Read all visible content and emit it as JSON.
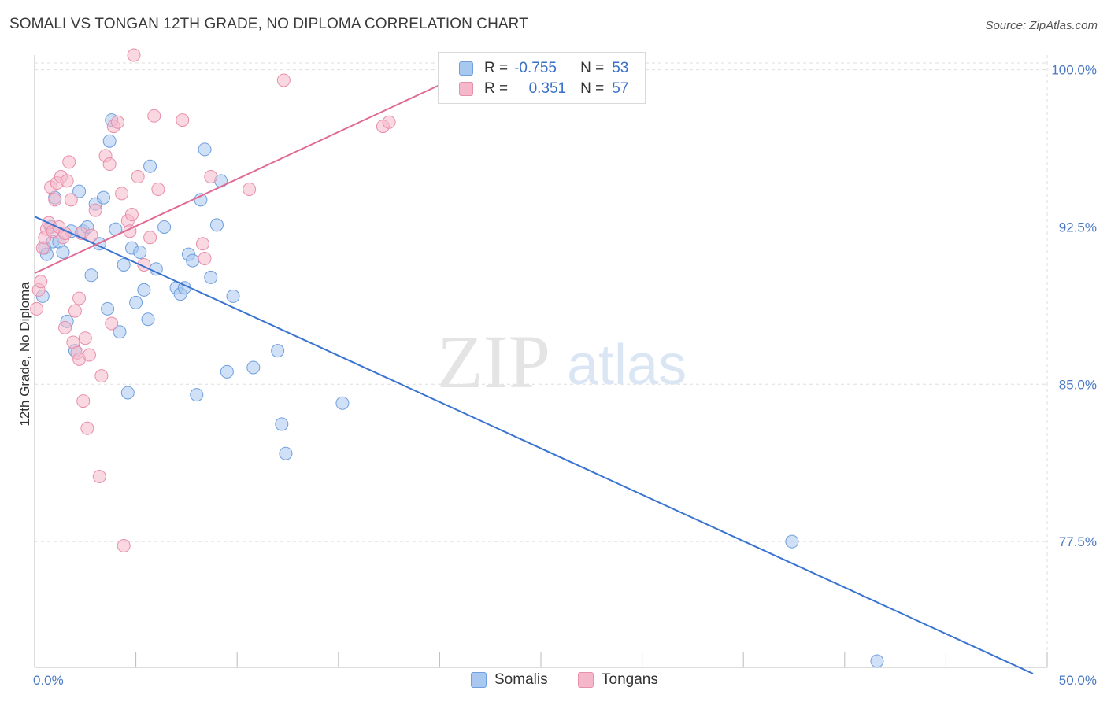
{
  "header": {
    "title": "SOMALI VS TONGAN 12TH GRADE, NO DIPLOMA CORRELATION CHART",
    "source": "Source: ZipAtlas.com"
  },
  "watermark": {
    "zip": "ZIP",
    "atlas": "atlas"
  },
  "legend_stats": {
    "somali": {
      "r_label": "R =",
      "r_value": "-0.755",
      "n_label": "N =",
      "n_value": "53"
    },
    "tongan": {
      "r_label": "R =",
      "r_value": "0.351",
      "n_label": "N =",
      "n_value": "57"
    }
  },
  "colors": {
    "somali_fill": "#a9c8f0",
    "somali_stroke": "#6f9fdc",
    "somali_line": "#3a74d0",
    "tongan_fill": "#f5b8cb",
    "tongan_stroke": "#e88fab",
    "tongan_line": "#e06a93",
    "grid": "#dedede",
    "axis": "#bbbbbb"
  },
  "chart_data": {
    "type": "scatter",
    "title": "SOMALI VS TONGAN 12TH GRADE, NO DIPLOMA CORRELATION CHART",
    "xlabel": "",
    "ylabel": "12th Grade, No Diploma",
    "xlim": [
      0,
      50
    ],
    "ylim": [
      71.5,
      100.7
    ],
    "x_tick_labels": [
      "0.0%",
      "50.0%"
    ],
    "y_ticks": [
      77.5,
      85.0,
      92.5,
      100.0
    ],
    "y_tick_labels": [
      "77.5%",
      "85.0%",
      "92.5%",
      "100.0%"
    ],
    "grid": true,
    "legend_position": "bottom-center",
    "series": [
      {
        "name": "Somalis",
        "points": [
          [
            0.4,
            89.2
          ],
          [
            0.5,
            91.5
          ],
          [
            0.6,
            91.2
          ],
          [
            0.8,
            92.5
          ],
          [
            0.9,
            91.8
          ],
          [
            1.0,
            93.9
          ],
          [
            1.2,
            91.8
          ],
          [
            1.4,
            91.3
          ],
          [
            1.6,
            88.0
          ],
          [
            1.8,
            92.3
          ],
          [
            2.0,
            86.6
          ],
          [
            2.2,
            94.2
          ],
          [
            2.4,
            92.3
          ],
          [
            2.6,
            92.5
          ],
          [
            2.8,
            90.2
          ],
          [
            3.0,
            93.6
          ],
          [
            3.2,
            91.7
          ],
          [
            3.4,
            93.9
          ],
          [
            3.6,
            88.6
          ],
          [
            3.7,
            96.6
          ],
          [
            3.8,
            97.6
          ],
          [
            4.0,
            92.4
          ],
          [
            4.2,
            87.5
          ],
          [
            4.4,
            90.7
          ],
          [
            4.6,
            84.6
          ],
          [
            4.8,
            91.5
          ],
          [
            5.0,
            88.9
          ],
          [
            5.2,
            91.3
          ],
          [
            5.4,
            89.5
          ],
          [
            5.6,
            88.1
          ],
          [
            5.7,
            95.4
          ],
          [
            6.0,
            90.5
          ],
          [
            6.4,
            92.5
          ],
          [
            7.0,
            89.6
          ],
          [
            7.2,
            89.3
          ],
          [
            7.4,
            89.6
          ],
          [
            7.6,
            91.2
          ],
          [
            7.8,
            90.9
          ],
          [
            8.0,
            84.5
          ],
          [
            8.2,
            93.8
          ],
          [
            8.4,
            96.2
          ],
          [
            8.7,
            90.1
          ],
          [
            9.0,
            92.6
          ],
          [
            9.2,
            94.7
          ],
          [
            9.5,
            85.6
          ],
          [
            9.8,
            89.2
          ],
          [
            10.8,
            85.8
          ],
          [
            12.0,
            86.6
          ],
          [
            12.2,
            83.1
          ],
          [
            12.4,
            81.7
          ],
          [
            15.2,
            84.1
          ],
          [
            37.4,
            77.5
          ],
          [
            41.6,
            71.8
          ]
        ]
      },
      {
        "name": "Tongans",
        "points": [
          [
            0.1,
            88.6
          ],
          [
            0.2,
            89.5
          ],
          [
            0.3,
            89.9
          ],
          [
            0.4,
            91.5
          ],
          [
            0.5,
            92.0
          ],
          [
            0.6,
            92.4
          ],
          [
            0.7,
            92.7
          ],
          [
            0.8,
            94.4
          ],
          [
            0.9,
            92.3
          ],
          [
            1.0,
            93.8
          ],
          [
            1.1,
            94.6
          ],
          [
            1.2,
            92.5
          ],
          [
            1.3,
            94.9
          ],
          [
            1.4,
            92.0
          ],
          [
            1.5,
            92.2
          ],
          [
            1.6,
            94.7
          ],
          [
            1.7,
            95.6
          ],
          [
            1.8,
            93.8
          ],
          [
            1.9,
            87.0
          ],
          [
            2.0,
            88.5
          ],
          [
            2.1,
            86.5
          ],
          [
            2.2,
            86.2
          ],
          [
            2.3,
            92.2
          ],
          [
            2.4,
            84.2
          ],
          [
            2.5,
            87.2
          ],
          [
            2.6,
            82.9
          ],
          [
            2.7,
            86.4
          ],
          [
            2.8,
            92.1
          ],
          [
            3.0,
            93.3
          ],
          [
            3.2,
            80.6
          ],
          [
            3.3,
            85.4
          ],
          [
            3.5,
            95.9
          ],
          [
            3.7,
            95.5
          ],
          [
            3.8,
            87.9
          ],
          [
            3.9,
            97.3
          ],
          [
            4.1,
            97.5
          ],
          [
            4.3,
            94.1
          ],
          [
            4.4,
            77.3
          ],
          [
            4.6,
            92.8
          ],
          [
            4.7,
            92.3
          ],
          [
            4.8,
            93.1
          ],
          [
            4.9,
            100.7
          ],
          [
            5.1,
            94.9
          ],
          [
            5.4,
            90.7
          ],
          [
            5.7,
            92.0
          ],
          [
            5.9,
            97.8
          ],
          [
            6.1,
            94.3
          ],
          [
            7.3,
            97.6
          ],
          [
            8.3,
            91.7
          ],
          [
            8.4,
            91.0
          ],
          [
            8.7,
            94.9
          ],
          [
            10.6,
            94.3
          ],
          [
            12.3,
            99.5
          ],
          [
            17.2,
            97.3
          ],
          [
            17.5,
            97.5
          ],
          [
            1.5,
            87.7
          ],
          [
            2.2,
            89.1
          ]
        ]
      }
    ],
    "trendlines": [
      {
        "series": "Somalis",
        "x": [
          0,
          49.3
        ],
        "y": [
          93.0,
          71.2
        ]
      },
      {
        "series": "Tongans",
        "x": [
          0,
          20.5
        ],
        "y": [
          90.3,
          99.5
        ]
      }
    ]
  },
  "bottom_legend": {
    "somali": "Somalis",
    "tongan": "Tongans"
  }
}
